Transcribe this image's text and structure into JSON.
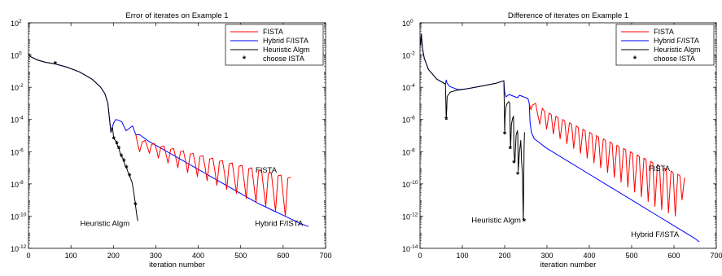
{
  "chart_data": [
    {
      "type": "line",
      "title": "Error of iterates on Example 1",
      "xlabel": "iteration number",
      "ylabel": "",
      "xlim": [
        0,
        700
      ],
      "ylim_log10": [
        -12,
        2
      ],
      "yscale": "log",
      "xticks": [
        "0",
        "100",
        "200",
        "300",
        "400",
        "500",
        "600",
        "700"
      ],
      "yticks": [
        {
          "base": "10",
          "exp": "2"
        },
        {
          "base": "10",
          "exp": "0"
        },
        {
          "base": "10",
          "exp": "-2"
        },
        {
          "base": "10",
          "exp": "-4"
        },
        {
          "base": "10",
          "exp": "-6"
        },
        {
          "base": "10",
          "exp": "-8"
        },
        {
          "base": "10",
          "exp": "-10"
        },
        {
          "base": "10",
          "exp": "-12"
        }
      ],
      "legend": [
        "FISTA",
        "Hybrid F/ISTA",
        "Heuristic Algm",
        "choose ISTA"
      ],
      "legend_position": "top-right",
      "colors": {
        "FISTA": "#ff0000",
        "Hybrid F/ISTA": "#0000ff",
        "Heuristic Algm": "#000000"
      },
      "annotations": [
        {
          "text": "FISTA",
          "x": 560,
          "y": -7.3
        },
        {
          "text": "Heuristic Algm",
          "x": 180,
          "y": -10.6
        },
        {
          "text": "Hybrid F/ISTA",
          "x": 590,
          "y": -10.6
        }
      ],
      "series": [
        {
          "name": "Hybrid F/ISTA",
          "x": [
            1,
            5,
            20,
            40,
            63,
            90,
            120,
            150,
            170,
            180,
            187,
            191,
            194,
            197,
            201,
            206,
            212,
            220,
            230,
            245,
            253,
            262,
            280,
            300,
            320,
            340,
            360,
            380,
            400,
            420,
            440,
            460,
            480,
            500,
            520,
            540,
            560,
            580,
            600,
            620,
            640,
            660
          ],
          "log10y": [
            0.1,
            -0.1,
            -0.3,
            -0.45,
            -0.55,
            -0.75,
            -1.05,
            -1.5,
            -2.0,
            -2.4,
            -3.0,
            -4.0,
            -4.8,
            -4.5,
            -4.2,
            -4.0,
            -4.05,
            -4.15,
            -4.7,
            -4.4,
            -4.95,
            -4.95,
            -5.3,
            -5.6,
            -5.9,
            -6.2,
            -6.5,
            -6.8,
            -7.1,
            -7.4,
            -7.7,
            -8.0,
            -8.3,
            -8.6,
            -8.9,
            -9.2,
            -9.45,
            -9.7,
            -9.95,
            -10.2,
            -10.45,
            -10.65
          ]
        },
        {
          "name": "FISTA",
          "x": [
            253,
            258,
            262,
            268,
            275,
            280,
            285,
            290,
            297,
            302,
            306,
            312,
            319,
            324,
            329,
            335,
            342,
            347,
            352,
            358,
            365,
            370,
            375,
            381,
            388,
            393,
            398,
            404,
            411,
            416,
            421,
            427,
            434,
            439,
            444,
            450,
            457,
            462,
            467,
            473,
            480,
            485,
            490,
            496,
            503,
            508,
            513,
            519,
            526,
            531,
            536,
            542,
            549,
            554,
            559,
            565,
            572,
            577,
            582,
            588,
            595,
            600,
            605,
            611,
            618
          ],
          "log10y": [
            -4.95,
            -5.6,
            -6.0,
            -5.4,
            -5.3,
            -5.7,
            -6.1,
            -5.55,
            -5.5,
            -5.9,
            -6.4,
            -5.7,
            -5.65,
            -6.15,
            -6.7,
            -5.85,
            -5.8,
            -6.35,
            -7.0,
            -6.0,
            -5.95,
            -6.55,
            -7.3,
            -6.15,
            -6.1,
            -6.75,
            -7.55,
            -6.3,
            -6.25,
            -6.95,
            -7.8,
            -6.45,
            -6.4,
            -7.15,
            -8.1,
            -6.6,
            -6.55,
            -7.35,
            -8.35,
            -6.75,
            -6.7,
            -7.6,
            -8.6,
            -6.9,
            -6.85,
            -7.8,
            -8.9,
            -7.05,
            -7.0,
            -8.05,
            -9.15,
            -7.2,
            -7.15,
            -8.3,
            -9.4,
            -7.35,
            -7.3,
            -8.5,
            -9.7,
            -7.5,
            -7.45,
            -8.7,
            -10.0,
            -7.65,
            -7.6
          ]
        },
        {
          "name": "Heuristic Algm",
          "x": [
            1,
            5,
            20,
            40,
            63,
            90,
            120,
            150,
            170,
            180,
            187,
            191,
            194,
            198,
            201,
            205,
            208,
            211,
            213,
            216,
            219,
            222,
            225,
            228,
            231,
            235,
            238,
            241,
            244,
            246,
            248,
            250,
            252,
            254,
            256,
            258
          ],
          "log10y": [
            0.1,
            -0.1,
            -0.3,
            -0.45,
            -0.55,
            -0.75,
            -1.05,
            -1.5,
            -2.0,
            -2.4,
            -3.0,
            -4.0,
            -4.8,
            -4.5,
            -5.2,
            -5.3,
            -5.5,
            -5.7,
            -5.8,
            -6.1,
            -6.3,
            -6.4,
            -6.6,
            -6.9,
            -7.0,
            -7.3,
            -7.5,
            -7.7,
            -7.9,
            -8.2,
            -8.5,
            -8.9,
            -9.3,
            -9.7,
            -10.1,
            -10.3
          ]
        },
        {
          "name": "choose ISTA",
          "marker": "*",
          "x": [
            63,
            201,
            208,
            213,
            219,
            225,
            231,
            238,
            252
          ],
          "log10y": [
            -0.55,
            -5.2,
            -5.5,
            -5.8,
            -6.3,
            -6.6,
            -7.0,
            -7.5,
            -9.3
          ]
        }
      ]
    },
    {
      "type": "line",
      "title": "Difference of iterates on Example 1",
      "xlabel": "iteration number",
      "ylabel": "",
      "xlim": [
        0,
        700
      ],
      "ylim_log10": [
        -14,
        0
      ],
      "yscale": "log",
      "xticks": [
        "0",
        "100",
        "200",
        "300",
        "400",
        "500",
        "600",
        "700"
      ],
      "yticks": [
        {
          "base": "10",
          "exp": "0"
        },
        {
          "base": "10",
          "exp": "-2"
        },
        {
          "base": "10",
          "exp": "-4"
        },
        {
          "base": "10",
          "exp": "-6"
        },
        {
          "base": "10",
          "exp": "-8"
        },
        {
          "base": "10",
          "exp": "-10"
        },
        {
          "base": "10",
          "exp": "-12"
        },
        {
          "base": "10",
          "exp": "-14"
        }
      ],
      "legend": [
        "FISTA",
        "Hybrid F/ISTA",
        "Heuristic Algm",
        "choose ISTA"
      ],
      "legend_position": "top-right",
      "colors": {
        "FISTA": "#ff0000",
        "Hybrid F/ISTA": "#0000ff",
        "Heuristic Algm": "#000000"
      },
      "annotations": [
        {
          "text": "FISTA",
          "x": 565,
          "y": -9.2
        },
        {
          "text": "Heuristic Algm",
          "x": 180,
          "y": -12.4
        },
        {
          "text": "Hybrid F/ISTA",
          "x": 555,
          "y": -13.3
        }
      ],
      "series": [
        {
          "name": "Hybrid F/ISTA",
          "x": [
            1,
            3,
            6,
            10,
            20,
            40,
            60,
            62,
            64,
            70,
            90,
            110,
            140,
            180,
            198,
            200,
            203,
            210,
            230,
            235,
            245,
            255,
            258,
            260,
            263,
            270,
            300,
            350,
            400,
            450,
            500,
            550,
            600,
            650,
            660
          ],
          "log10y": [
            -1.4,
            -0.7,
            -1.6,
            -2.2,
            -2.9,
            -3.5,
            -3.8,
            -3.55,
            -3.75,
            -3.95,
            -4.15,
            -4.1,
            -3.95,
            -3.75,
            -3.6,
            -4.3,
            -4.6,
            -4.45,
            -4.65,
            -4.5,
            -4.6,
            -4.7,
            -5.0,
            -6.2,
            -6.8,
            -7.2,
            -7.8,
            -8.6,
            -9.4,
            -10.2,
            -11.0,
            -11.8,
            -12.6,
            -13.4,
            -13.6
          ]
        },
        {
          "name": "FISTA",
          "x": [
            258,
            262,
            266,
            273,
            278,
            283,
            289,
            294,
            299,
            305,
            310,
            315,
            321,
            326,
            331,
            337,
            342,
            347,
            353,
            358,
            363,
            369,
            374,
            379,
            385,
            390,
            395,
            401,
            406,
            411,
            417,
            422,
            427,
            433,
            438,
            443,
            449,
            454,
            459,
            465,
            470,
            475,
            481,
            486,
            491,
            497,
            502,
            507,
            513,
            518,
            523,
            529,
            534,
            539,
            545,
            550,
            555,
            561,
            566,
            571,
            577,
            582,
            587,
            593,
            598,
            603,
            609,
            614,
            619,
            625
          ],
          "log10y": [
            -5.0,
            -5.4,
            -5.1,
            -5.0,
            -5.7,
            -6.3,
            -5.3,
            -5.5,
            -6.6,
            -5.6,
            -5.7,
            -6.9,
            -5.8,
            -5.9,
            -7.2,
            -6.0,
            -6.1,
            -7.5,
            -6.2,
            -6.3,
            -7.8,
            -6.4,
            -6.5,
            -8.1,
            -6.6,
            -6.7,
            -8.4,
            -6.8,
            -6.9,
            -8.7,
            -7.0,
            -7.1,
            -9.0,
            -7.2,
            -7.3,
            -9.3,
            -7.4,
            -7.5,
            -9.6,
            -7.6,
            -7.7,
            -9.9,
            -7.8,
            -7.9,
            -10.2,
            -8.0,
            -8.1,
            -10.5,
            -8.2,
            -8.3,
            -10.8,
            -8.4,
            -8.5,
            -11.1,
            -8.6,
            -8.7,
            -11.4,
            -8.8,
            -8.9,
            -11.6,
            -9.0,
            -9.1,
            -11.8,
            -9.2,
            -9.3,
            -12.0,
            -9.4,
            -9.5,
            -11.0,
            -9.6
          ]
        },
        {
          "name": "Heuristic Algm",
          "x": [
            1,
            3,
            6,
            10,
            20,
            40,
            60,
            61,
            62,
            63,
            64,
            66,
            72,
            85,
            110,
            140,
            180,
            198,
            199,
            200,
            201,
            203,
            206,
            210,
            212,
            213,
            214,
            216,
            219,
            221,
            222,
            224,
            227,
            230,
            231,
            232,
            235,
            238,
            240,
            242,
            244,
            246,
            247
          ],
          "log10y": [
            -1.4,
            -0.7,
            -1.6,
            -2.2,
            -2.9,
            -3.5,
            -3.8,
            -4.8,
            -6.0,
            -5.4,
            -4.6,
            -4.5,
            -4.3,
            -4.2,
            -4.1,
            -3.95,
            -3.75,
            -3.6,
            -5.0,
            -6.9,
            -5.8,
            -5.2,
            -5.0,
            -4.9,
            -5.0,
            -7.0,
            -7.8,
            -6.3,
            -5.9,
            -5.8,
            -8.0,
            -8.7,
            -7.0,
            -6.7,
            -6.9,
            -9.2,
            -8.0,
            -7.3,
            -8.6,
            -9.4,
            -12.3,
            -7.6,
            -6.8
          ]
        },
        {
          "name": "choose ISTA",
          "marker": "*",
          "x": [
            62,
            200,
            213,
            222,
            231,
            246
          ],
          "log10y": [
            -6.0,
            -6.9,
            -7.8,
            -8.7,
            -9.4,
            -12.3
          ]
        }
      ]
    }
  ]
}
